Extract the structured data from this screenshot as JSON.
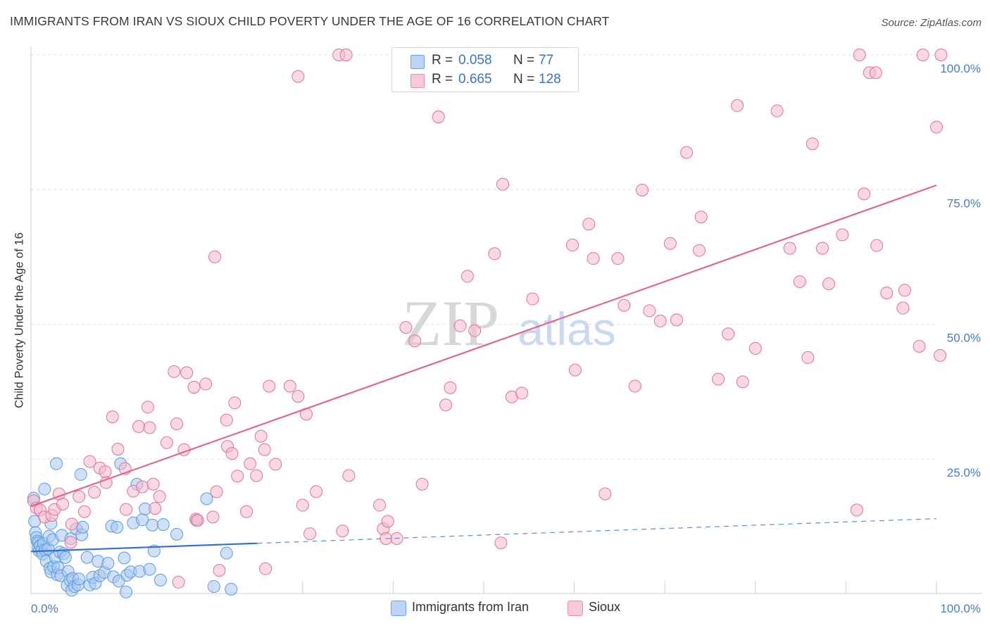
{
  "header": {
    "title": "IMMIGRANTS FROM IRAN VS SIOUX CHILD POVERTY UNDER THE AGE OF 16 CORRELATION CHART",
    "source": "Source: ZipAtlas.com"
  },
  "watermark": {
    "zip": "ZIP",
    "atlas": "atlas"
  },
  "legend": {
    "iran": {
      "r_label": "R =",
      "r_value": "0.058",
      "n_label": "N =",
      "n_value": "77",
      "color": "#5b9be0",
      "fill": "#a9c8f0"
    },
    "sioux": {
      "r_label": "R =",
      "r_value": "0.665",
      "n_label": "N =",
      "n_value": "128",
      "color": "#e2709a",
      "fill": "#f6b9cc"
    }
  },
  "bottom_legend": {
    "iran": "Immigrants from Iran",
    "sioux": "Sioux"
  },
  "chart_data": {
    "type": "scatter",
    "title": "IMMIGRANTS FROM IRAN VS SIOUX CHILD POVERTY UNDER THE AGE OF 16 CORRELATION CHART",
    "xlabel": "",
    "ylabel": "Child Poverty Under the Age of 16",
    "xlim": [
      0,
      100
    ],
    "ylim": [
      0,
      100
    ],
    "x_tick_labels": [
      "0.0%",
      "100.0%"
    ],
    "y_tick_labels": [
      "25.0%",
      "50.0%",
      "75.0%",
      "100.0%"
    ],
    "y_ticks": [
      25,
      50,
      75,
      100
    ],
    "grid": true,
    "legend_position": "top-center",
    "series": [
      {
        "name": "Immigrants from Iran",
        "color": "#5b9be0",
        "trend": {
          "x": [
            0,
            100
          ],
          "y": [
            7.8,
            13.9
          ],
          "solid_until_x": 25
        },
        "points": [
          [
            0.3,
            17.7
          ],
          [
            0.4,
            13.4
          ],
          [
            0.5,
            11.3
          ],
          [
            0.6,
            10.4
          ],
          [
            0.7,
            9.7
          ],
          [
            0.8,
            9.4
          ],
          [
            0.8,
            8.5
          ],
          [
            0.9,
            7.9
          ],
          [
            1.0,
            8.9
          ],
          [
            1.2,
            8.0
          ],
          [
            1.3,
            7.3
          ],
          [
            1.4,
            9.3
          ],
          [
            1.5,
            19.4
          ],
          [
            1.6,
            8.1
          ],
          [
            1.7,
            6.0
          ],
          [
            1.9,
            8.3
          ],
          [
            2.0,
            10.6
          ],
          [
            2.1,
            4.7
          ],
          [
            2.2,
            4.0
          ],
          [
            2.2,
            13.0
          ],
          [
            2.4,
            10.0
          ],
          [
            2.5,
            5.0
          ],
          [
            2.7,
            6.7
          ],
          [
            2.8,
            24.1
          ],
          [
            2.9,
            3.5
          ],
          [
            3.0,
            4.8
          ],
          [
            3.2,
            7.7
          ],
          [
            3.3,
            3.3
          ],
          [
            3.4,
            10.8
          ],
          [
            3.6,
            7.4
          ],
          [
            3.8,
            6.7
          ],
          [
            4.0,
            1.5
          ],
          [
            4.1,
            4.1
          ],
          [
            4.3,
            2.5
          ],
          [
            4.4,
            10.2
          ],
          [
            4.5,
            0.6
          ],
          [
            4.6,
            2.8
          ],
          [
            4.8,
            1.3
          ],
          [
            5.0,
            12.0
          ],
          [
            5.2,
            1.6
          ],
          [
            5.3,
            2.7
          ],
          [
            5.5,
            22.1
          ],
          [
            5.6,
            10.9
          ],
          [
            5.7,
            12.3
          ],
          [
            6.2,
            6.7
          ],
          [
            6.5,
            1.6
          ],
          [
            6.8,
            3.0
          ],
          [
            7.1,
            1.9
          ],
          [
            7.4,
            6.0
          ],
          [
            7.6,
            3.3
          ],
          [
            8.1,
            3.9
          ],
          [
            8.5,
            5.6
          ],
          [
            8.9,
            12.5
          ],
          [
            9.1,
            3.1
          ],
          [
            9.5,
            12.3
          ],
          [
            9.7,
            2.3
          ],
          [
            9.9,
            24.1
          ],
          [
            10.3,
            6.6
          ],
          [
            10.5,
            0.3
          ],
          [
            10.6,
            3.4
          ],
          [
            11.0,
            4.0
          ],
          [
            11.3,
            13.1
          ],
          [
            11.7,
            20.3
          ],
          [
            12.0,
            4.1
          ],
          [
            12.3,
            13.7
          ],
          [
            12.6,
            15.7
          ],
          [
            13.1,
            4.5
          ],
          [
            13.4,
            12.7
          ],
          [
            13.6,
            7.9
          ],
          [
            14.3,
            2.5
          ],
          [
            14.6,
            12.8
          ],
          [
            16.1,
            11.0
          ],
          [
            18.3,
            13.6
          ],
          [
            19.4,
            17.6
          ],
          [
            20.2,
            1.3
          ],
          [
            21.6,
            7.5
          ],
          [
            22.1,
            0.8
          ]
        ]
      },
      {
        "name": "Sioux",
        "color": "#e2709a",
        "trend": {
          "x": [
            0,
            100
          ],
          "y": [
            16.2,
            75.8
          ]
        },
        "points": [
          [
            0.3,
            17.2
          ],
          [
            0.6,
            15.9
          ],
          [
            1.0,
            15.5
          ],
          [
            1.5,
            14.2
          ],
          [
            2.3,
            14.5
          ],
          [
            2.6,
            15.6
          ],
          [
            3.1,
            18.5
          ],
          [
            3.5,
            16.6
          ],
          [
            4.4,
            9.5
          ],
          [
            4.5,
            12.9
          ],
          [
            5.3,
            18.0
          ],
          [
            5.9,
            15.2
          ],
          [
            6.5,
            24.5
          ],
          [
            7.0,
            18.8
          ],
          [
            7.6,
            23.3
          ],
          [
            8.2,
            22.6
          ],
          [
            8.3,
            20.6
          ],
          [
            9.0,
            32.8
          ],
          [
            9.6,
            26.8
          ],
          [
            10.4,
            23.2
          ],
          [
            10.5,
            15.6
          ],
          [
            11.3,
            19.0
          ],
          [
            11.9,
            31.0
          ],
          [
            12.3,
            19.8
          ],
          [
            12.9,
            34.6
          ],
          [
            13.1,
            30.8
          ],
          [
            13.5,
            20.3
          ],
          [
            13.7,
            15.8
          ],
          [
            14.2,
            18.0
          ],
          [
            15.0,
            28.0
          ],
          [
            15.8,
            41.2
          ],
          [
            16.1,
            31.5
          ],
          [
            16.3,
            2.1
          ],
          [
            16.9,
            26.7
          ],
          [
            17.2,
            41.0
          ],
          [
            18.0,
            38.3
          ],
          [
            18.2,
            13.8
          ],
          [
            18.4,
            13.6
          ],
          [
            19.3,
            38.9
          ],
          [
            20.1,
            14.2
          ],
          [
            20.3,
            62.5
          ],
          [
            20.5,
            18.9
          ],
          [
            20.8,
            4.3
          ],
          [
            21.6,
            32.2
          ],
          [
            21.7,
            27.3
          ],
          [
            22.2,
            26.0
          ],
          [
            22.5,
            35.4
          ],
          [
            22.8,
            21.8
          ],
          [
            23.8,
            15.2
          ],
          [
            24.2,
            24.1
          ],
          [
            24.9,
            21.9
          ],
          [
            25.4,
            29.2
          ],
          [
            25.8,
            26.7
          ],
          [
            25.9,
            4.6
          ],
          [
            26.3,
            38.5
          ],
          [
            27.0,
            24.0
          ],
          [
            28.6,
            38.5
          ],
          [
            29.5,
            36.6
          ],
          [
            29.5,
            96.0
          ],
          [
            30.0,
            16.4
          ],
          [
            30.4,
            33.3
          ],
          [
            30.8,
            11.1
          ],
          [
            31.5,
            18.9
          ],
          [
            34.0,
            100.0
          ],
          [
            34.4,
            11.6
          ],
          [
            34.8,
            100.0
          ],
          [
            35.1,
            21.9
          ],
          [
            38.5,
            16.4
          ],
          [
            38.9,
            12.0
          ],
          [
            39.2,
            10.2
          ],
          [
            39.4,
            13.4
          ],
          [
            40.4,
            10.2
          ],
          [
            41.4,
            49.4
          ],
          [
            42.4,
            46.9
          ],
          [
            43.2,
            20.3
          ],
          [
            45.0,
            88.5
          ],
          [
            45.8,
            35.0
          ],
          [
            46.3,
            38.2
          ],
          [
            47.4,
            49.7
          ],
          [
            48.2,
            58.9
          ],
          [
            49.0,
            48.8
          ],
          [
            51.2,
            63.1
          ],
          [
            51.9,
            9.4
          ],
          [
            52.1,
            76.0
          ],
          [
            53.1,
            36.5
          ],
          [
            54.2,
            37.2
          ],
          [
            55.4,
            54.7
          ],
          [
            59.8,
            64.7
          ],
          [
            60.1,
            41.5
          ],
          [
            61.6,
            68.6
          ],
          [
            62.1,
            62.2
          ],
          [
            63.4,
            18.5
          ],
          [
            64.8,
            62.2
          ],
          [
            65.5,
            53.5
          ],
          [
            66.7,
            38.5
          ],
          [
            67.5,
            74.9
          ],
          [
            68.3,
            52.5
          ],
          [
            69.5,
            50.6
          ],
          [
            70.6,
            65.0
          ],
          [
            71.3,
            50.8
          ],
          [
            72.4,
            81.9
          ],
          [
            73.8,
            63.7
          ],
          [
            74.0,
            69.9
          ],
          [
            75.9,
            39.8
          ],
          [
            77.0,
            48.2
          ],
          [
            78.0,
            90.6
          ],
          [
            78.6,
            39.3
          ],
          [
            80.0,
            45.5
          ],
          [
            82.4,
            89.6
          ],
          [
            83.8,
            64.1
          ],
          [
            84.9,
            57.9
          ],
          [
            85.8,
            43.8
          ],
          [
            86.3,
            83.5
          ],
          [
            87.4,
            64.1
          ],
          [
            88.1,
            57.5
          ],
          [
            89.6,
            66.6
          ],
          [
            91.2,
            15.5
          ],
          [
            91.5,
            100.0
          ],
          [
            92.0,
            74.2
          ],
          [
            92.6,
            96.7
          ],
          [
            93.3,
            96.7
          ],
          [
            93.4,
            64.6
          ],
          [
            94.5,
            55.8
          ],
          [
            96.3,
            53.0
          ],
          [
            96.5,
            56.3
          ],
          [
            98.1,
            45.9
          ],
          [
            98.5,
            100.0
          ],
          [
            100.0,
            86.6
          ],
          [
            100.4,
            44.2
          ],
          [
            100.5,
            100.0
          ]
        ]
      }
    ]
  }
}
